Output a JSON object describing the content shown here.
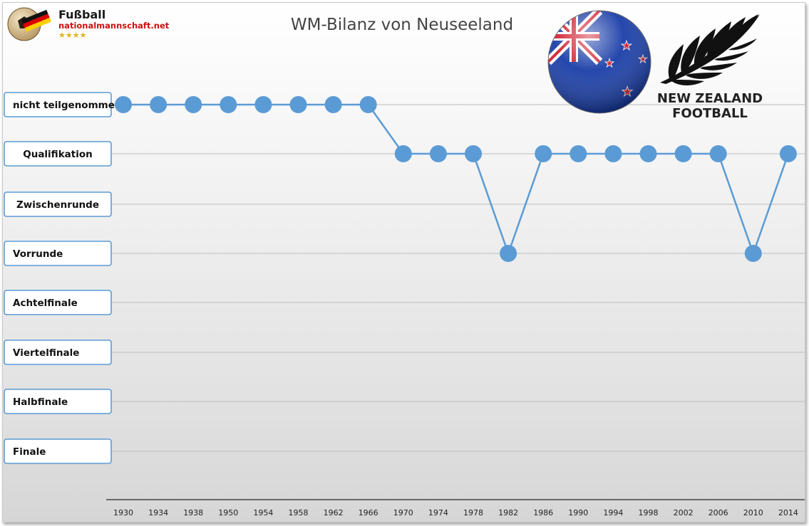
{
  "logo": {
    "name": "Fußball",
    "site": "nationalmannschaft.net",
    "stars": "★★★★"
  },
  "badge": {
    "line1": "NEW ZEALAND",
    "line2": "FOOTBALL"
  },
  "colors": {
    "series": "#5b9bd5",
    "flag_blue": "#1a3ea8",
    "flag_red": "#d2202f"
  },
  "chart_data": {
    "type": "line",
    "title": "WM-Bilanz von Neuseeland",
    "categories": [
      "1930",
      "1934",
      "1938",
      "1950",
      "1954",
      "1958",
      "1962",
      "1966",
      "1970",
      "1974",
      "1978",
      "1982",
      "1986",
      "1990",
      "1994",
      "1998",
      "2002",
      "2006",
      "2010",
      "2014"
    ],
    "levels": [
      "nicht teilgenommen",
      "Qualifikation",
      "Zwischenrunde",
      "Vorrunde",
      "Achtelfinale",
      "Viertelfinale",
      "Halbfinale",
      "Finale"
    ],
    "series": [
      {
        "values": [
          "nicht teilgenommen",
          "nicht teilgenommen",
          "nicht teilgenommen",
          "nicht teilgenommen",
          "nicht teilgenommen",
          "nicht teilgenommen",
          "nicht teilgenommen",
          "nicht teilgenommen",
          "Qualifikation",
          "Qualifikation",
          "Qualifikation",
          "Vorrunde",
          "Qualifikation",
          "Qualifikation",
          "Qualifikation",
          "Qualifikation",
          "Qualifikation",
          "Qualifikation",
          "Vorrunde",
          "Qualifikation"
        ]
      }
    ],
    "grid": true,
    "legend": "none"
  }
}
